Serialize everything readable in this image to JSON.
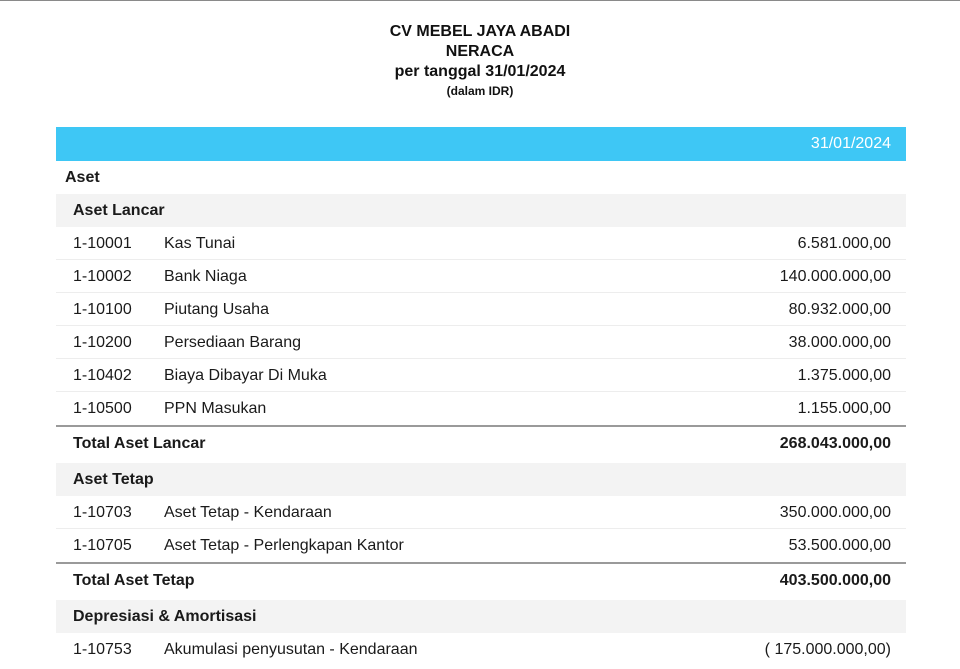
{
  "header": {
    "company": "CV MEBEL JAYA ABADI",
    "report_title": "NERACA",
    "period": "per tanggal 31/01/2024",
    "currency_note": "(dalam IDR)"
  },
  "table": {
    "column_date": "31/01/2024",
    "group_label": "Aset",
    "sections": [
      {
        "title": "Aset Lancar",
        "rows": [
          {
            "code": "1-10001",
            "name": "Kas Tunai",
            "amount": "6.581.000,00"
          },
          {
            "code": "1-10002",
            "name": "Bank Niaga",
            "amount": "140.000.000,00"
          },
          {
            "code": "1-10100",
            "name": "Piutang Usaha",
            "amount": "80.932.000,00"
          },
          {
            "code": "1-10200",
            "name": "Persediaan Barang",
            "amount": "38.000.000,00"
          },
          {
            "code": "1-10402",
            "name": "Biaya Dibayar Di Muka",
            "amount": "1.375.000,00"
          },
          {
            "code": "1-10500",
            "name": "PPN Masukan",
            "amount": "1.155.000,00"
          }
        ],
        "total_label": "Total Aset Lancar",
        "total_amount": "268.043.000,00"
      },
      {
        "title": "Aset Tetap",
        "rows": [
          {
            "code": "1-10703",
            "name": "Aset Tetap - Kendaraan",
            "amount": "350.000.000,00"
          },
          {
            "code": "1-10705",
            "name": "Aset Tetap - Perlengkapan Kantor",
            "amount": "53.500.000,00"
          }
        ],
        "total_label": "Total Aset Tetap",
        "total_amount": "403.500.000,00"
      },
      {
        "title": "Depresiasi & Amortisasi",
        "rows": [
          {
            "code": "1-10753",
            "name": "Akumulasi penyusutan - Kendaraan",
            "amount": "( 175.000.000,00)"
          }
        ]
      }
    ]
  }
}
